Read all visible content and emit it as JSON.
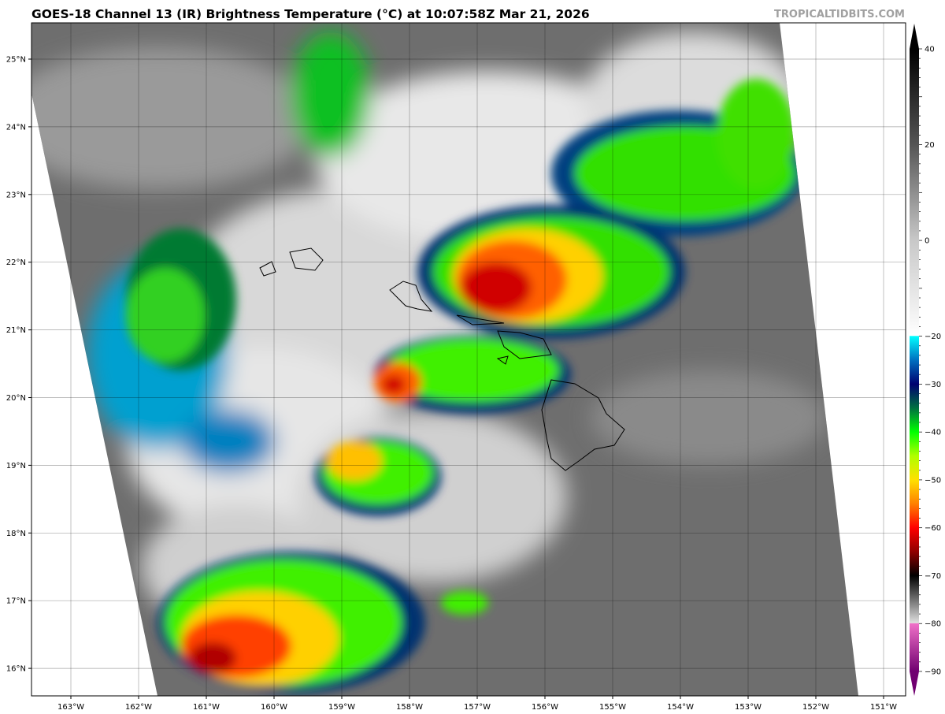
{
  "title": "GOES-18 Channel 13 (IR) Brightness Temperature (°C) at 10:07:58Z Mar 21, 2026",
  "watermark": "TROPICALTIDBITS.COM",
  "map": {
    "longitude_labels": [
      {
        "value": -163,
        "label": "163°W"
      },
      {
        "value": -162,
        "label": "162°W"
      },
      {
        "value": -161,
        "label": "161°W"
      },
      {
        "value": -160,
        "label": "160°W"
      },
      {
        "value": -159,
        "label": "159°W"
      },
      {
        "value": -158,
        "label": "158°W"
      },
      {
        "value": -157,
        "label": "157°W"
      },
      {
        "value": -156,
        "label": "156°W"
      },
      {
        "value": -155,
        "label": "155°W"
      },
      {
        "value": -154,
        "label": "154°W"
      },
      {
        "value": -153,
        "label": "153°W"
      },
      {
        "value": -152,
        "label": "152°W"
      },
      {
        "value": -151,
        "label": "151°W"
      }
    ],
    "latitude_labels": [
      {
        "value": 25,
        "label": "25°N"
      },
      {
        "value": 24,
        "label": "24°N"
      },
      {
        "value": 23,
        "label": "23°N"
      },
      {
        "value": 22,
        "label": "22°N"
      },
      {
        "value": 21,
        "label": "21°N"
      },
      {
        "value": 20,
        "label": "20°N"
      },
      {
        "value": 19,
        "label": "19°N"
      },
      {
        "value": 18,
        "label": "18°N"
      },
      {
        "value": 17,
        "label": "17°N"
      },
      {
        "value": 16,
        "label": "16°N"
      }
    ],
    "grid": true,
    "ocean_color": "#6e6e6e",
    "outside_swath_color": "#ffffff"
  },
  "colorbar": {
    "min": -90,
    "max": 40,
    "ticks": [
      {
        "value": 40,
        "label": "40"
      },
      {
        "value": 20,
        "label": "20"
      },
      {
        "value": 0,
        "label": "0"
      },
      {
        "value": -20,
        "label": "−20"
      },
      {
        "value": -30,
        "label": "−30"
      },
      {
        "value": -40,
        "label": "−40"
      },
      {
        "value": -50,
        "label": "−50"
      },
      {
        "value": -60,
        "label": "−60"
      },
      {
        "value": -70,
        "label": "−70"
      },
      {
        "value": -80,
        "label": "−80"
      },
      {
        "value": -90,
        "label": "−90"
      }
    ],
    "stops": [
      {
        "value": 40,
        "color": "#000000"
      },
      {
        "value": 20,
        "color": "#555555"
      },
      {
        "value": 0,
        "color": "#c8c8c8"
      },
      {
        "value": -19.9,
        "color": "#ffffff"
      },
      {
        "value": -20,
        "color": "#00ffff"
      },
      {
        "value": -25,
        "color": "#0070c0"
      },
      {
        "value": -30,
        "color": "#000070"
      },
      {
        "value": -35,
        "color": "#007040"
      },
      {
        "value": -40,
        "color": "#00ff00"
      },
      {
        "value": -45,
        "color": "#b0ff00"
      },
      {
        "value": -50,
        "color": "#ffe000"
      },
      {
        "value": -55,
        "color": "#ff8000"
      },
      {
        "value": -60,
        "color": "#ff0000"
      },
      {
        "value": -65,
        "color": "#900000"
      },
      {
        "value": -70,
        "color": "#000000"
      },
      {
        "value": -75,
        "color": "#707070"
      },
      {
        "value": -79.9,
        "color": "#e0e0e0"
      },
      {
        "value": -80,
        "color": "#f070c8"
      },
      {
        "value": -90,
        "color": "#700070"
      }
    ]
  }
}
